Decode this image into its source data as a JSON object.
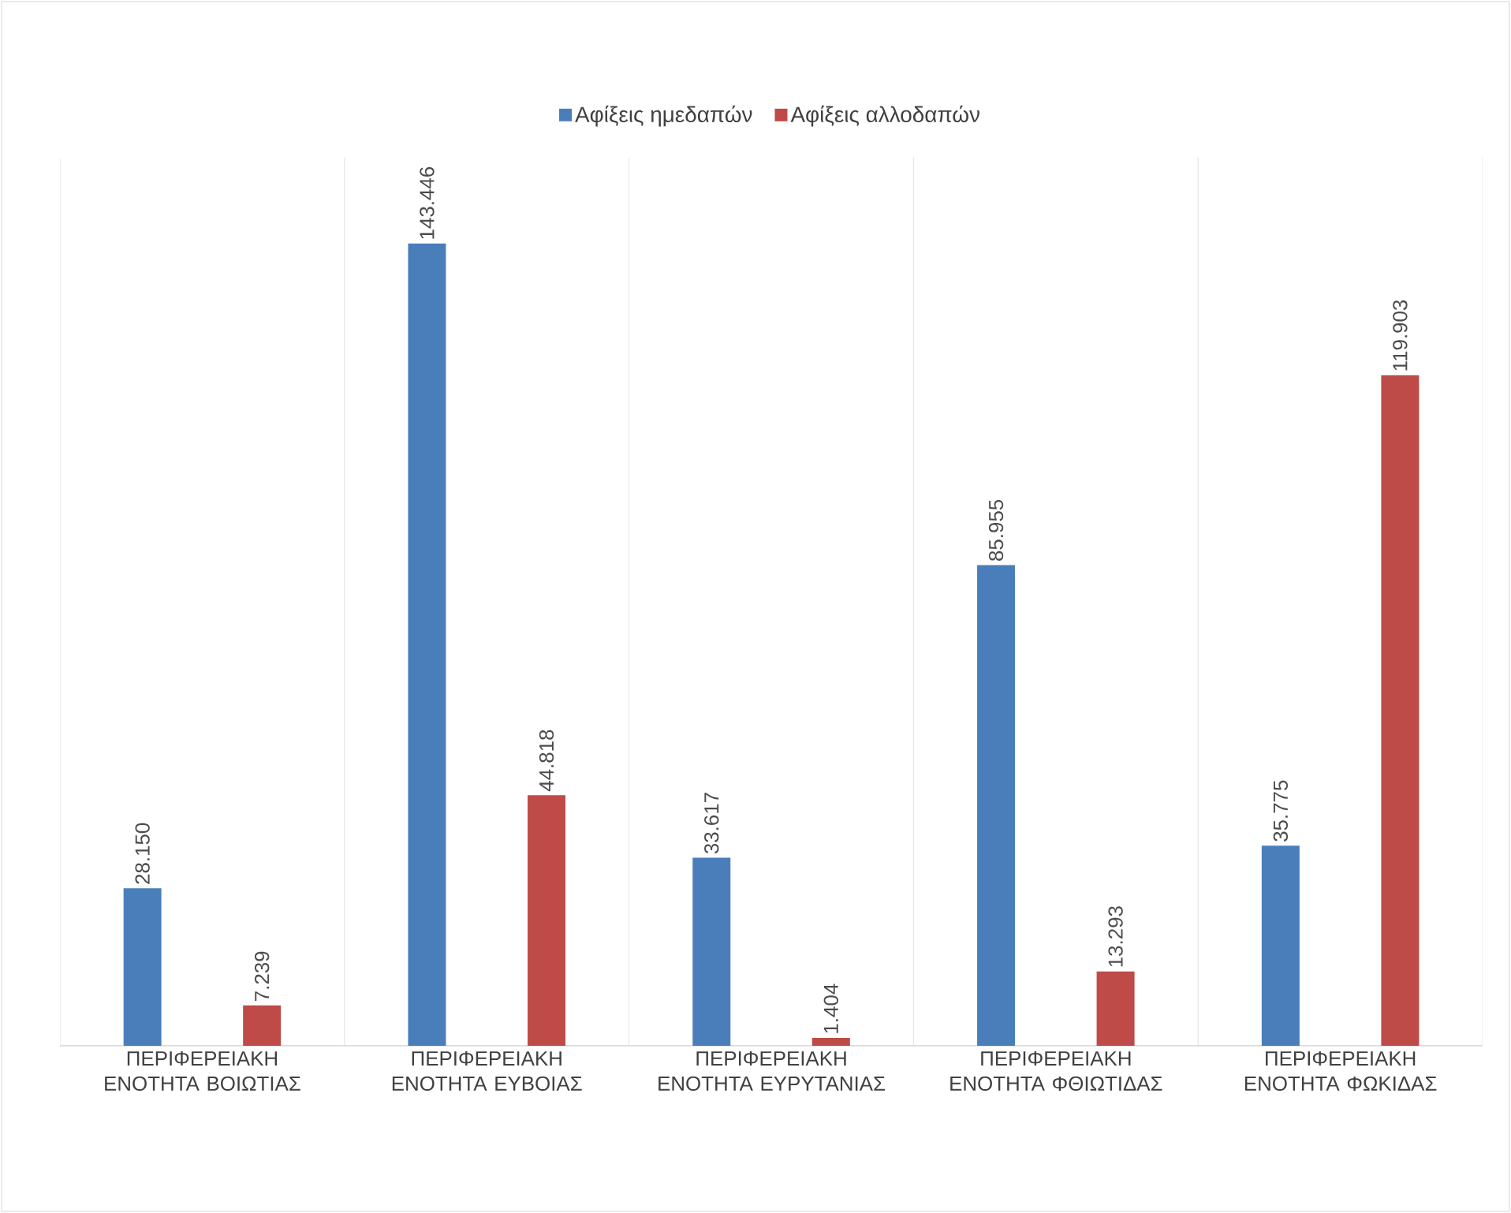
{
  "chart_data": {
    "type": "bar",
    "categories": [
      "ΠΕΡΙΦΕΡΕΙΑΚΗ ΕΝΟΤΗΤΑ ΒΟΙΩΤΙΑΣ",
      "ΠΕΡΙΦΕΡΕΙΑΚΗ ΕΝΟΤΗΤΑ ΕΥΒΟΙΑΣ",
      "ΠΕΡΙΦΕΡΕΙΑΚΗ ΕΝΟΤΗΤΑ ΕΥΡΥΤΑΝΙΑΣ",
      "ΠΕΡΙΦΕΡΕΙΑΚΗ ΕΝΟΤΗΤΑ ΦΘΙΩΤΙΔΑΣ",
      "ΠΕΡΙΦΕΡΕΙΑΚΗ ΕΝΟΤΗΤΑ ΦΩΚΙΔΑΣ"
    ],
    "series": [
      {
        "name": "Αφίξεις ημεδαπών",
        "color": "#4a7ebb",
        "values": [
          28150,
          143446,
          33617,
          85955,
          35775
        ],
        "value_labels": [
          "28.150",
          "143.446",
          "33.617",
          "85.955",
          "35.775"
        ]
      },
      {
        "name": "Αφίξεις αλλοδαπών",
        "color": "#be4b48",
        "values": [
          7239,
          44818,
          1404,
          13293,
          119903
        ],
        "value_labels": [
          "7.239",
          "44.818",
          "1.404",
          "13.293",
          "119.903"
        ]
      }
    ],
    "grid": "x",
    "legend": "top",
    "tick_labels": "x"
  }
}
